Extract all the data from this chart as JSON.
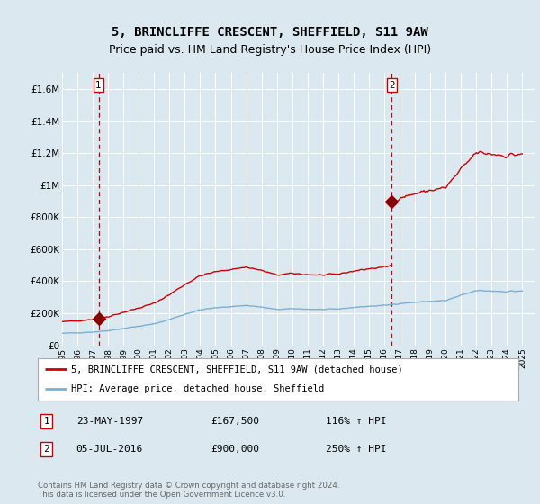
{
  "title": "5, BRINCLIFFE CRESCENT, SHEFFIELD, S11 9AW",
  "subtitle": "Price paid vs. HM Land Registry's House Price Index (HPI)",
  "title_fontsize": 10,
  "subtitle_fontsize": 9,
  "ylim": [
    0,
    1700000
  ],
  "yticks": [
    0,
    200000,
    400000,
    600000,
    800000,
    1000000,
    1200000,
    1400000,
    1600000
  ],
  "ytick_labels": [
    "£0",
    "£200K",
    "£400K",
    "£600K",
    "£800K",
    "£1M",
    "£1.2M",
    "£1.4M",
    "£1.6M"
  ],
  "xlim_start": 1995.0,
  "xlim_end": 2025.8,
  "sale1_year": 1997.38,
  "sale1_price": 167500,
  "sale2_year": 2016.5,
  "sale2_price": 900000,
  "property_line_color": "#cc0000",
  "hpi_line_color": "#7ab0d4",
  "sale_dot_color": "#880000",
  "vline_color": "#cc0000",
  "background_color": "#dce8f0",
  "plot_bg_color": "#dce8f0",
  "grid_color": "#ffffff",
  "legend_label_property": "5, BRINCLIFFE CRESCENT, SHEFFIELD, S11 9AW (detached house)",
  "legend_label_hpi": "HPI: Average price, detached house, Sheffield",
  "footnote": "Contains HM Land Registry data © Crown copyright and database right 2024.\nThis data is licensed under the Open Government Licence v3.0.",
  "sale_table": [
    {
      "num": "1",
      "date": "23-MAY-1997",
      "price": "£167,500",
      "hpi": "116% ↑ HPI"
    },
    {
      "num": "2",
      "date": "05-JUL-2016",
      "price": "£900,000",
      "hpi": "250% ↑ HPI"
    }
  ]
}
